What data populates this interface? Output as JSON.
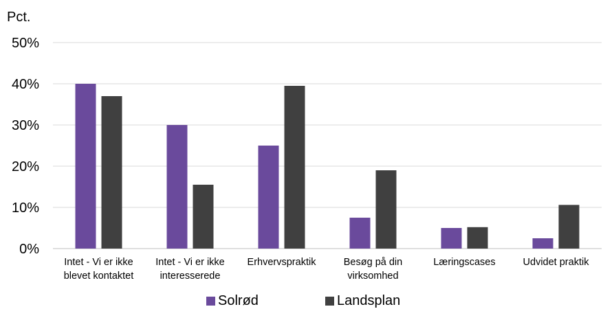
{
  "chart_data": {
    "type": "bar",
    "ylabel": "Pct.",
    "ylim": [
      0,
      50
    ],
    "yticks": [
      "0%",
      "10%",
      "20%",
      "30%",
      "40%",
      "50%"
    ],
    "ytick_values": [
      0,
      10,
      20,
      30,
      40,
      50
    ],
    "grid": true,
    "legend_position": "bottom",
    "categories": [
      [
        "Intet - Vi er ikke",
        "blevet kontaktet"
      ],
      [
        "Intet - Vi er ikke",
        "interesserede"
      ],
      [
        "Erhvervspraktik"
      ],
      [
        "Besøg på din",
        "virksomhed"
      ],
      [
        "Læringscases"
      ],
      [
        "Udvidet praktik"
      ]
    ],
    "series": [
      {
        "name": "Solrød",
        "color": "#6a4a9c",
        "values": [
          40,
          30,
          25,
          7.5,
          5,
          2.5
        ]
      },
      {
        "name": "Landsplan",
        "color": "#404040",
        "values": [
          37,
          15.5,
          39.5,
          19,
          5.2,
          10.6
        ]
      }
    ]
  }
}
